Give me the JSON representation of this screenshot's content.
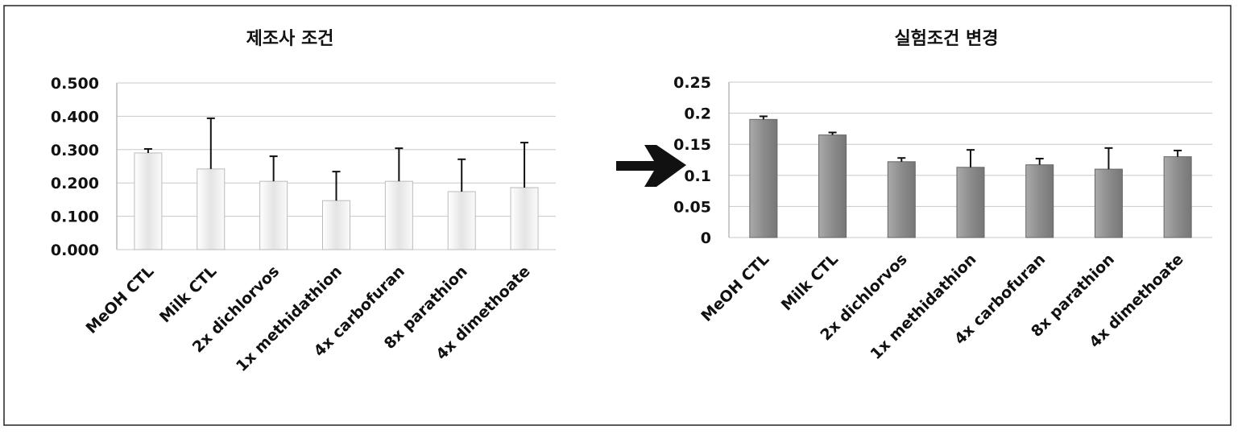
{
  "chart_data": [
    {
      "type": "bar",
      "title": "제조사 조건",
      "categories": [
        "MeOH CTL",
        "Milk CTL",
        "2x dichlorvos",
        "1x methidathion",
        "4x carbofuran",
        "8x parathion",
        "4x dimethoate"
      ],
      "values": [
        0.29,
        0.242,
        0.205,
        0.147,
        0.205,
        0.174,
        0.186
      ],
      "errors": [
        0.012,
        0.152,
        0.075,
        0.087,
        0.099,
        0.097,
        0.135
      ],
      "color": "#d8d8d8",
      "ylim": [
        0,
        0.5
      ],
      "yticks": [
        {
          "value": 0,
          "label": "0.000"
        },
        {
          "value": 0.1,
          "label": "0.100"
        },
        {
          "value": 0.2,
          "label": "0.200"
        },
        {
          "value": 0.3,
          "label": "0.300"
        },
        {
          "value": 0.4,
          "label": "0.400"
        },
        {
          "value": 0.5,
          "label": "0.500"
        }
      ],
      "grid": true
    },
    {
      "type": "bar",
      "title": "실험조건 변경",
      "categories": [
        "MeOH CTL",
        "Milk CTL",
        "2x dichlorvos",
        "1x methidathion",
        "4x carbofuran",
        "8x parathion",
        "4x dimethoate"
      ],
      "values": [
        0.19,
        0.165,
        0.122,
        0.113,
        0.117,
        0.11,
        0.13
      ],
      "errors": [
        0.005,
        0.004,
        0.006,
        0.028,
        0.01,
        0.034,
        0.01
      ],
      "color": "#8c8c8c",
      "ylim": [
        0,
        0.25
      ],
      "yticks": [
        0,
        0.05,
        0.1,
        0.15,
        0.2,
        0.25
      ],
      "grid": true
    }
  ]
}
